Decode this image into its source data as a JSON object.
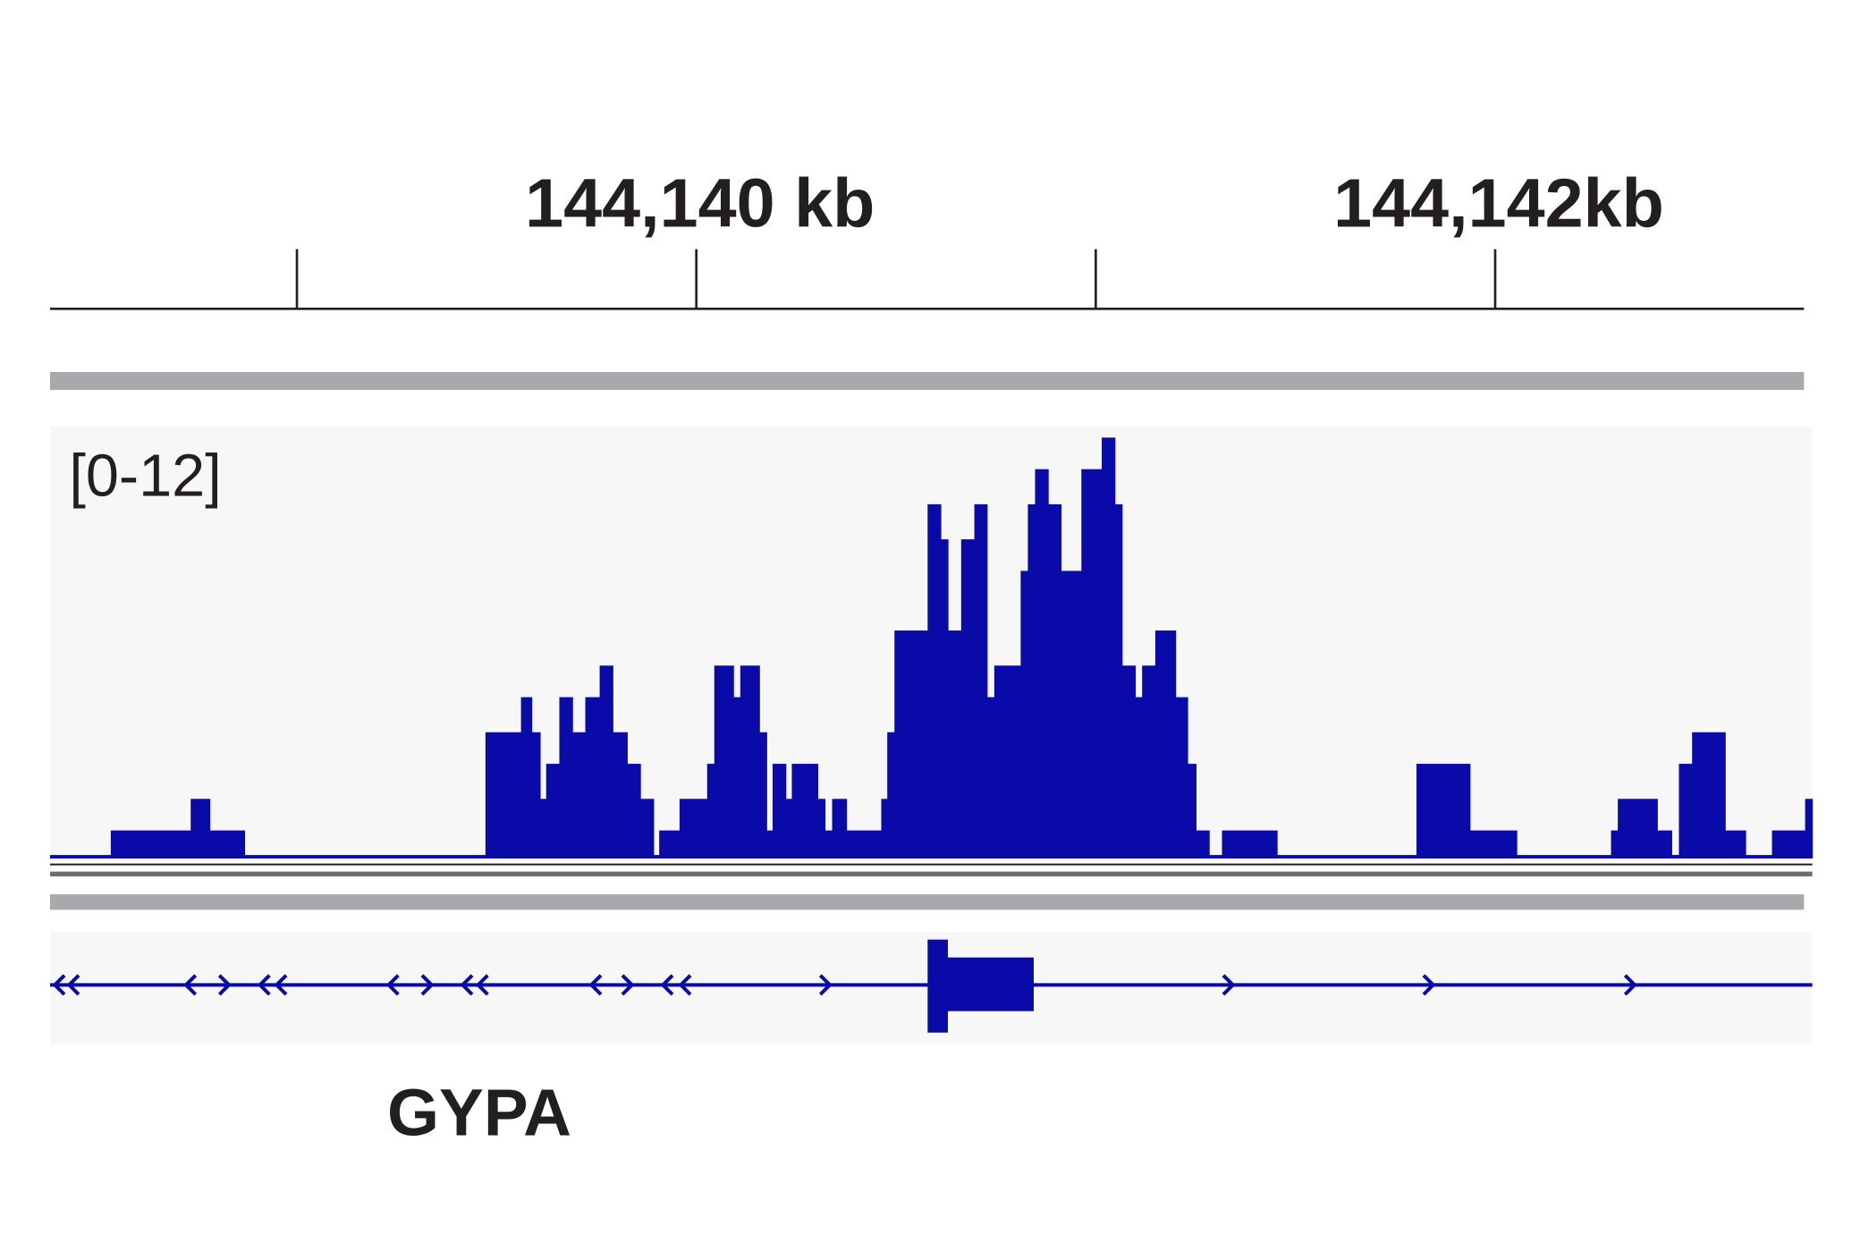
{
  "chart_data": {
    "type": "histogram",
    "range_label": "[0-12]",
    "gene_label": "GYPA",
    "color": "#0a0aa8",
    "xlim": [
      144138.382,
      144142.794
    ],
    "xticks": [
      {
        "value": 144140,
        "label": "144,140 kb"
      },
      {
        "value": 144142,
        "label": "144,142kb"
      }
    ],
    "minor_xticks": [
      144139,
      144141
    ],
    "ylim": [
      0,
      12
    ],
    "bins": [
      144138.382,
      144138.534,
      144138.734,
      144138.782,
      144138.869,
      144139.472,
      144139.561,
      144139.588,
      144139.609,
      144139.624,
      144139.657,
      144139.69,
      144139.722,
      144139.758,
      144139.791,
      144139.827,
      144139.86,
      144139.893,
      144139.907,
      144139.958,
      144140.027,
      144140.045,
      144140.093,
      144140.11,
      144140.158,
      144140.176,
      144140.191,
      144140.224,
      144140.239,
      144140.304,
      144140.322,
      144140.34,
      144140.376,
      144140.463,
      144140.478,
      144140.496,
      144140.579,
      144140.612,
      144140.63,
      144140.663,
      144140.696,
      144140.728,
      144140.746,
      144140.812,
      144140.83,
      144140.848,
      144140.881,
      144140.913,
      144140.964,
      144141.015,
      144141.048,
      144141.066,
      144141.099,
      144141.116,
      144141.149,
      144141.2,
      144141.23,
      144141.251,
      144141.284,
      144141.316,
      144141.454,
      144141.803,
      144141.937,
      144142.054,
      144142.29,
      144142.307,
      144142.406,
      144142.442,
      144142.46,
      144142.493,
      144142.576,
      144142.627,
      144142.693,
      144142.776,
      144142.794
    ],
    "values": [
      0.1,
      0.8,
      1.7,
      0.8,
      0.1,
      3.6,
      4.6,
      3.6,
      1.7,
      2.7,
      4.6,
      3.6,
      4.6,
      5.5,
      3.6,
      2.7,
      1.7,
      0.1,
      0.8,
      1.7,
      2.7,
      5.5,
      4.6,
      5.5,
      3.6,
      0.8,
      2.7,
      1.7,
      2.7,
      1.7,
      0.8,
      1.7,
      0.8,
      1.7,
      3.6,
      6.5,
      10.1,
      9.1,
      6.5,
      9.1,
      10.1,
      4.6,
      5.5,
      8.2,
      10.1,
      11.1,
      10.1,
      8.2,
      11.1,
      12,
      10.1,
      5.5,
      4.6,
      5.5,
      6.5,
      4.6,
      2.7,
      0.8,
      0.1,
      0.8,
      0.1,
      2.7,
      0.8,
      0.1,
      0.8,
      1.7,
      0.8,
      0.1,
      2.7,
      3.6,
      0.8,
      0.1,
      0.8,
      1.7
    ]
  }
}
